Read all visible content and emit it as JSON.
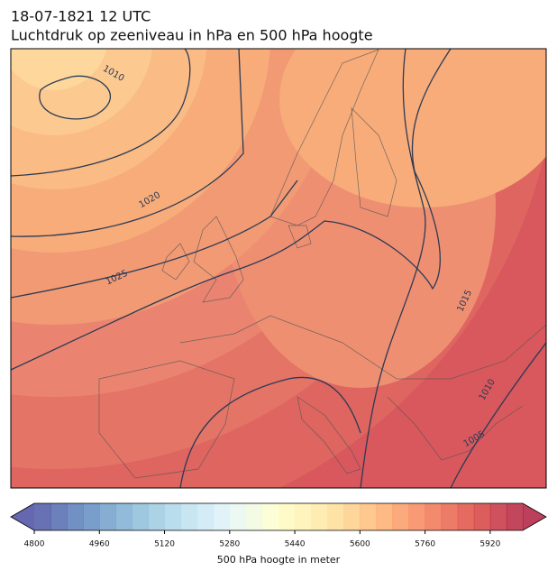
{
  "header": {
    "title_line1": "18-07-1821 12 UTC",
    "title_line2": "Luchtdruk op zeeniveau in hPa en 500 hPa hoogte"
  },
  "map": {
    "contour_labels": [
      1010,
      1020,
      1025,
      1015,
      1010,
      1005
    ]
  },
  "colorbar": {
    "range": [
      4800,
      6000
    ],
    "ticks": [
      4800,
      4960,
      5120,
      5280,
      5440,
      5600,
      5760,
      5920
    ],
    "label": "500 hPa hoogte in meter"
  }
}
